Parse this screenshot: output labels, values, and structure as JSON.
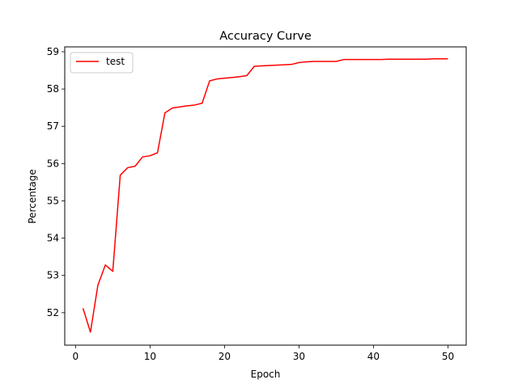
{
  "chart_data": {
    "type": "line",
    "title": "Accuracy Curve",
    "xlabel": "Epoch",
    "ylabel": "Percentage",
    "xlim": [
      -1.45,
      52.45
    ],
    "ylim": [
      51.13,
      59.13
    ],
    "x_ticks": [
      0,
      10,
      20,
      30,
      40,
      50
    ],
    "y_ticks": [
      52,
      53,
      54,
      55,
      56,
      57,
      58,
      59
    ],
    "grid": false,
    "legend_position": "upper-left",
    "series": [
      {
        "name": "test",
        "color": "#ff0000",
        "x": [
          1,
          2,
          3,
          4,
          5,
          6,
          7,
          8,
          9,
          10,
          11,
          12,
          13,
          14,
          15,
          16,
          17,
          18,
          19,
          20,
          21,
          22,
          23,
          24,
          25,
          26,
          27,
          28,
          29,
          30,
          31,
          32,
          33,
          34,
          35,
          36,
          37,
          38,
          39,
          40,
          41,
          42,
          43,
          44,
          45,
          46,
          47,
          48,
          49,
          50
        ],
        "y": [
          52.12,
          51.48,
          52.74,
          53.28,
          53.11,
          55.69,
          55.89,
          55.93,
          56.18,
          56.21,
          56.29,
          57.36,
          57.49,
          57.52,
          57.55,
          57.57,
          57.62,
          58.22,
          58.27,
          58.29,
          58.31,
          58.33,
          58.36,
          58.61,
          58.62,
          58.63,
          58.64,
          58.65,
          58.66,
          58.71,
          58.73,
          58.74,
          58.74,
          58.74,
          58.74,
          58.79,
          58.79,
          58.79,
          58.79,
          58.79,
          58.79,
          58.8,
          58.8,
          58.8,
          58.8,
          58.8,
          58.8,
          58.81,
          58.81,
          58.81
        ]
      }
    ]
  }
}
